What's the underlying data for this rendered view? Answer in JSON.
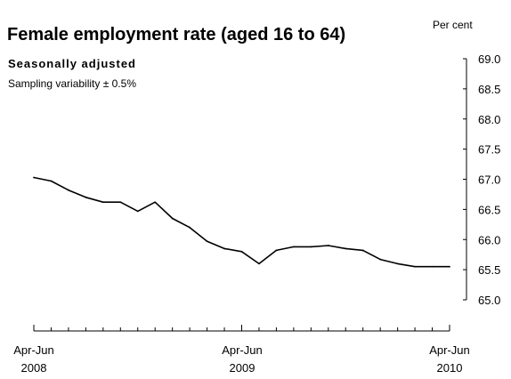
{
  "chart_data": {
    "type": "line",
    "title": "Female employment rate (aged 16 to 64)",
    "subtitle": "Seasonally adjusted",
    "note": "Sampling variability ± 0.5%",
    "ylabel": "Per cent",
    "ylim": [
      65.0,
      69.0
    ],
    "y_ticks": [
      "65.0",
      "65.5",
      "66.0",
      "66.5",
      "67.0",
      "67.5",
      "68.0",
      "68.5",
      "69.0"
    ],
    "x_tick_labels": [
      {
        "line1": "Apr-Jun",
        "line2": "2008"
      },
      {
        "line1": "Apr-Jun",
        "line2": "2009"
      },
      {
        "line1": "Apr-Jun",
        "line2": "2010"
      }
    ],
    "series": [
      {
        "values": [
          67.03,
          66.97,
          66.82,
          66.7,
          66.62,
          66.62,
          66.47,
          66.62,
          66.35,
          66.2,
          65.97,
          65.85,
          65.8,
          65.6,
          65.82,
          65.88,
          65.88,
          65.9,
          65.85,
          65.82,
          65.67,
          65.6,
          65.55,
          65.55,
          65.55
        ],
        "color": "#000000"
      }
    ]
  }
}
